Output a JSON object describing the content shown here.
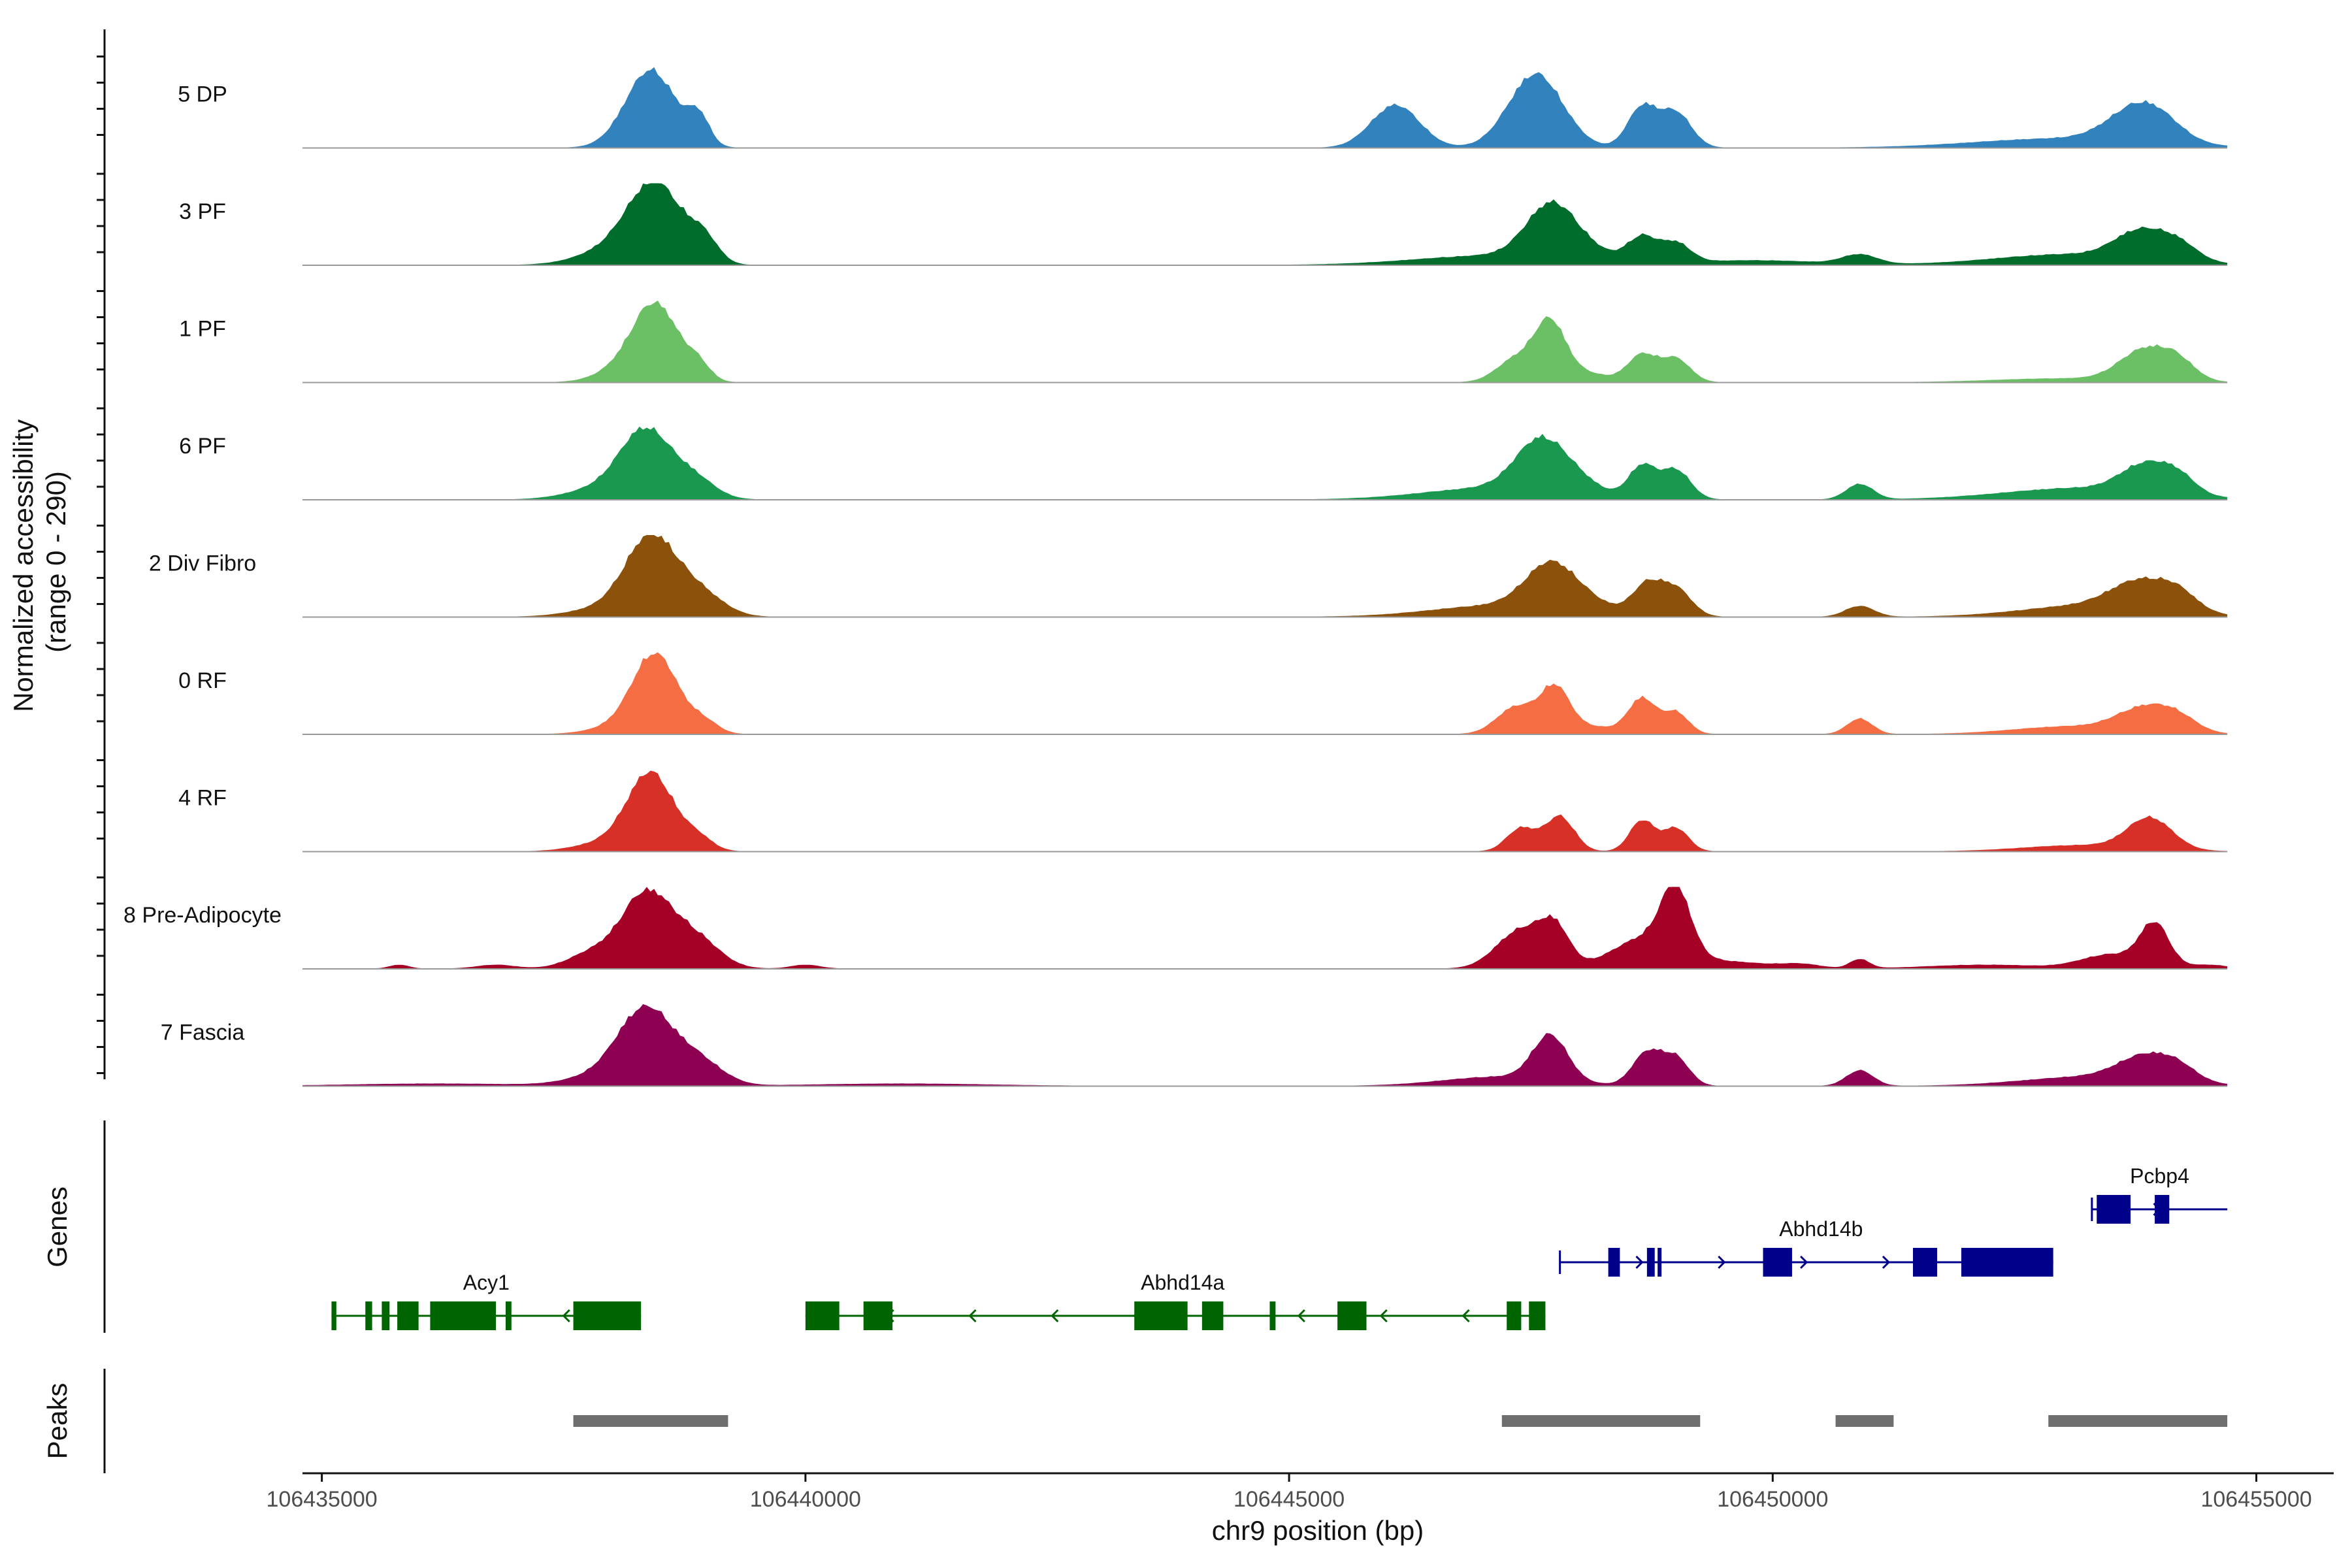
{
  "chart_data": {
    "type": "area",
    "title": "",
    "ylabel_line1": "Normalized accessibility",
    "ylabel_line2": "(range 0 - 290)",
    "xlabel": "chr9 position (bp)",
    "xlim": [
      106434800,
      106455800
    ],
    "x_ticks": [
      106435000,
      106440000,
      106445000,
      106450000,
      106455000
    ],
    "x_tick_labels": [
      "106435000",
      "106440000",
      "106445000",
      "106450000",
      "106455000"
    ],
    "region_end": 106454700,
    "tracks": [
      {
        "name": "5 DP",
        "color": "#3182bd",
        "peaks": [
          [
            106438400,
            1.0,
            260
          ],
          [
            106438900,
            0.35,
            110
          ],
          [
            106446100,
            0.55,
            250
          ],
          [
            106447550,
            0.95,
            280
          ],
          [
            106448650,
            0.52,
            150
          ],
          [
            106449000,
            0.45,
            160
          ],
          [
            106453000,
            0.12,
            900
          ],
          [
            106453750,
            0.38,
            300
          ],
          [
            106454000,
            0.18,
            260
          ]
        ]
      },
      {
        "name": "3 PF",
        "color": "#006d2c",
        "peaks": [
          [
            106438000,
            0.18,
            350
          ],
          [
            106438450,
            1.0,
            280
          ],
          [
            106438950,
            0.28,
            150
          ],
          [
            106447100,
            0.12,
            800
          ],
          [
            106447700,
            0.55,
            250
          ],
          [
            106447900,
            0.2,
            350
          ],
          [
            106448650,
            0.32,
            150
          ],
          [
            106449000,
            0.25,
            150
          ],
          [
            106449800,
            0.06,
            700
          ],
          [
            106450900,
            0.12,
            180
          ],
          [
            106453100,
            0.14,
            800
          ],
          [
            106453800,
            0.35,
            260
          ],
          [
            106454200,
            0.2,
            200
          ]
        ]
      },
      {
        "name": "1 PF",
        "color": "#6bbf64",
        "peaks": [
          [
            106438050,
            0.12,
            250
          ],
          [
            106438450,
            1.0,
            240
          ],
          [
            106438900,
            0.18,
            120
          ],
          [
            106447350,
            0.3,
            200
          ],
          [
            106447700,
            0.72,
            160
          ],
          [
            106448050,
            0.12,
            250
          ],
          [
            106448650,
            0.35,
            150
          ],
          [
            106449000,
            0.3,
            150
          ],
          [
            106453000,
            0.05,
            700
          ],
          [
            106453850,
            0.4,
            260
          ],
          [
            106454200,
            0.2,
            180
          ]
        ]
      },
      {
        "name": "6 PF",
        "color": "#1a9850",
        "peaks": [
          [
            106437900,
            0.14,
            350
          ],
          [
            106438350,
            0.85,
            260
          ],
          [
            106438850,
            0.25,
            220
          ],
          [
            106447100,
            0.15,
            700
          ],
          [
            106447600,
            0.65,
            260
          ],
          [
            106448000,
            0.15,
            250
          ],
          [
            106448650,
            0.42,
            140
          ],
          [
            106449000,
            0.38,
            150
          ],
          [
            106450900,
            0.2,
            140
          ],
          [
            106453200,
            0.15,
            800
          ],
          [
            106453850,
            0.35,
            250
          ],
          [
            106454200,
            0.2,
            180
          ]
        ]
      },
      {
        "name": "2 Div Fibro",
        "color": "#8c510a",
        "peaks": [
          [
            106437900,
            0.1,
            350
          ],
          [
            106438400,
            1.0,
            260
          ],
          [
            106438900,
            0.3,
            250
          ],
          [
            106447200,
            0.15,
            700
          ],
          [
            106447700,
            0.55,
            260
          ],
          [
            106448100,
            0.12,
            300
          ],
          [
            106448700,
            0.38,
            150
          ],
          [
            106449000,
            0.35,
            160
          ],
          [
            106450900,
            0.14,
            150
          ],
          [
            106453300,
            0.15,
            700
          ],
          [
            106453800,
            0.35,
            300
          ],
          [
            106454200,
            0.2,
            200
          ]
        ]
      },
      {
        "name": "0 RF",
        "color": "#f46d43",
        "peaks": [
          [
            106438100,
            0.1,
            300
          ],
          [
            106438450,
            1.0,
            230
          ],
          [
            106438950,
            0.15,
            150
          ],
          [
            106447350,
            0.35,
            200
          ],
          [
            106447750,
            0.55,
            150
          ],
          [
            106448100,
            0.1,
            300
          ],
          [
            106448650,
            0.45,
            140
          ],
          [
            106449000,
            0.28,
            130
          ],
          [
            106450900,
            0.2,
            130
          ],
          [
            106453100,
            0.1,
            600
          ],
          [
            106453850,
            0.3,
            280
          ],
          [
            106454200,
            0.15,
            200
          ]
        ]
      },
      {
        "name": "4 RF",
        "color": "#d73027",
        "peaks": [
          [
            106437900,
            0.1,
            300
          ],
          [
            106438400,
            1.0,
            240
          ],
          [
            106438900,
            0.15,
            150
          ],
          [
            106447400,
            0.3,
            150
          ],
          [
            106447800,
            0.45,
            150
          ],
          [
            106448650,
            0.4,
            130
          ],
          [
            106449000,
            0.3,
            130
          ],
          [
            106453200,
            0.08,
            600
          ],
          [
            106453900,
            0.4,
            230
          ]
        ]
      },
      {
        "name": "8 Pre-Adipocyte",
        "color": "#a50026",
        "peaks": [
          [
            106437800,
            0.2,
            250
          ],
          [
            106438350,
            0.95,
            250
          ],
          [
            106438850,
            0.4,
            250
          ],
          [
            106435800,
            0.05,
            100
          ],
          [
            106436800,
            0.05,
            200
          ],
          [
            106440000,
            0.05,
            150
          ],
          [
            106447400,
            0.5,
            250
          ],
          [
            106447750,
            0.45,
            150
          ],
          [
            106448700,
            0.4,
            350
          ],
          [
            106449000,
            0.8,
            150
          ],
          [
            106449600,
            0.08,
            400
          ],
          [
            106450300,
            0.05,
            200
          ],
          [
            106450900,
            0.12,
            100
          ],
          [
            106452200,
            0.05,
            600
          ],
          [
            106453500,
            0.18,
            300
          ],
          [
            106453950,
            0.55,
            150
          ],
          [
            106454500,
            0.05,
            200
          ]
        ]
      },
      {
        "name": "7 Fascia",
        "color": "#8e0152",
        "peaks": [
          [
            106437900,
            0.12,
            350
          ],
          [
            106438350,
            0.95,
            280
          ],
          [
            106438900,
            0.3,
            250
          ],
          [
            106436200,
            0.03,
            900
          ],
          [
            106441000,
            0.03,
            900
          ],
          [
            106447200,
            0.12,
            600
          ],
          [
            106447700,
            0.58,
            180
          ],
          [
            106448700,
            0.42,
            150
          ],
          [
            106449000,
            0.35,
            140
          ],
          [
            106450900,
            0.2,
            140
          ],
          [
            106453300,
            0.12,
            700
          ],
          [
            106453850,
            0.3,
            280
          ],
          [
            106454200,
            0.15,
            200
          ]
        ]
      }
    ],
    "genes_label": "Genes",
    "genes": [
      {
        "name": "Acy1",
        "strand": "-",
        "start": 106435100,
        "end": 106438300,
        "label_pos": 106436700,
        "row": 2,
        "color": "#006400",
        "exons": [
          [
            106435100,
            106435150
          ],
          [
            106435450,
            106435520
          ],
          [
            106435620,
            106435700
          ],
          [
            106435780,
            106436000
          ],
          [
            106436120,
            106436800
          ],
          [
            106436900,
            106436960
          ],
          [
            106437600,
            106438300
          ]
        ]
      },
      {
        "name": "Abhd14a",
        "strand": "-",
        "start": 106440000,
        "end": 106447650,
        "label_pos": 106443900,
        "row": 2,
        "color": "#006400",
        "exons": [
          [
            106440000,
            106440350
          ],
          [
            106440600,
            106440900
          ],
          [
            106443400,
            106443950
          ],
          [
            106444100,
            106444320
          ],
          [
            106444800,
            106444860
          ],
          [
            106445500,
            106445800
          ],
          [
            106447250,
            106447400
          ],
          [
            106447480,
            106447650
          ]
        ]
      },
      {
        "name": "Abhd14b",
        "strand": "+",
        "start": 106447800,
        "end": 106452900,
        "label_pos": 106450500,
        "row": 1,
        "color": "#00008b",
        "exons": [
          [
            106448300,
            106448420
          ],
          [
            106448700,
            106448780
          ],
          [
            106448810,
            106448850
          ],
          [
            106449900,
            106450200
          ],
          [
            106451450,
            106451700
          ],
          [
            106451950,
            106452900
          ]
        ]
      },
      {
        "name": "Pcbp4",
        "strand": "+",
        "start": 106453300,
        "end": 106454700,
        "label_pos": 106454000,
        "row": 0,
        "color": "#00008b",
        "exons": [
          [
            106453350,
            106453700
          ],
          [
            106453950,
            106454100
          ]
        ]
      }
    ],
    "peaks_label": "Peaks",
    "peak_regions": [
      [
        106437600,
        106439200
      ],
      [
        106447200,
        106449250
      ],
      [
        106450650,
        106451250
      ],
      [
        106452850,
        106454700
      ]
    ]
  }
}
